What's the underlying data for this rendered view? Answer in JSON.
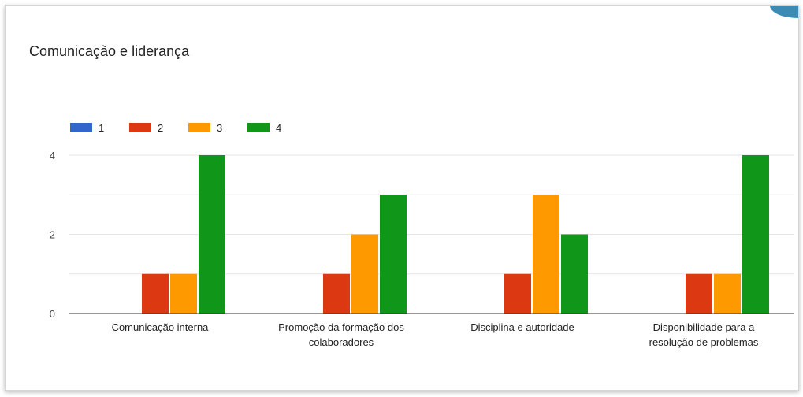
{
  "chart_data": {
    "type": "bar",
    "title": "Comunicação e liderança",
    "categories": [
      [
        "Comunicação interna"
      ],
      [
        "Promoção da formação dos",
        "colaboradores"
      ],
      [
        "Disciplina e autoridade"
      ],
      [
        "Disponibilidade para a",
        "resolução de problemas"
      ]
    ],
    "series": [
      {
        "name": "1",
        "color": "#3366cc",
        "values": [
          0,
          0,
          0,
          0
        ]
      },
      {
        "name": "2",
        "color": "#dc3912",
        "values": [
          1,
          1,
          1,
          1
        ]
      },
      {
        "name": "3",
        "color": "#ff9900",
        "values": [
          1,
          2,
          3,
          1
        ]
      },
      {
        "name": "4",
        "color": "#109618",
        "values": [
          4,
          3,
          2,
          4
        ]
      }
    ],
    "ylim": [
      0,
      4
    ],
    "yticks": [
      0,
      2,
      4
    ],
    "grid": true,
    "legend_position": "top-left"
  }
}
